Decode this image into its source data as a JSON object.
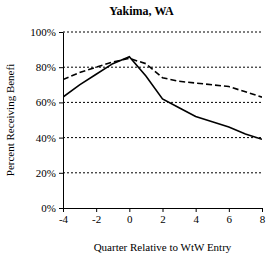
{
  "chart_data": {
    "type": "line",
    "title": "Yakima, WA",
    "x_label": "Quarter Relative to WtW Entry",
    "y_label": "Percent Receiving Benefi",
    "x": [
      -4,
      -3,
      -2,
      -1,
      0,
      1,
      2,
      3,
      4,
      5,
      6,
      7,
      8
    ],
    "series": [
      {
        "color": "#000000",
        "line_style": "solid",
        "values": [
          63,
          70,
          76,
          82,
          86,
          75,
          62,
          57,
          52,
          49,
          46,
          42,
          39
        ]
      },
      {
        "color": "#000000",
        "line_style": "dashed",
        "values": [
          73,
          77,
          80,
          83,
          85,
          82,
          74,
          72,
          71,
          70,
          69,
          66,
          63
        ]
      }
    ],
    "xlim": [
      -4,
      8
    ],
    "xticks": [
      -4,
      -2,
      0,
      2,
      4,
      6,
      8
    ],
    "ylim": [
      0,
      100
    ],
    "yticks": [
      {
        "value": 0,
        "label": "0%"
      },
      {
        "value": 20,
        "label": "20%"
      },
      {
        "value": 40,
        "label": "40%"
      },
      {
        "value": 60,
        "label": "60%"
      },
      {
        "value": 80,
        "label": "80%"
      },
      {
        "value": 100,
        "label": "100%"
      }
    ],
    "grid": true
  }
}
